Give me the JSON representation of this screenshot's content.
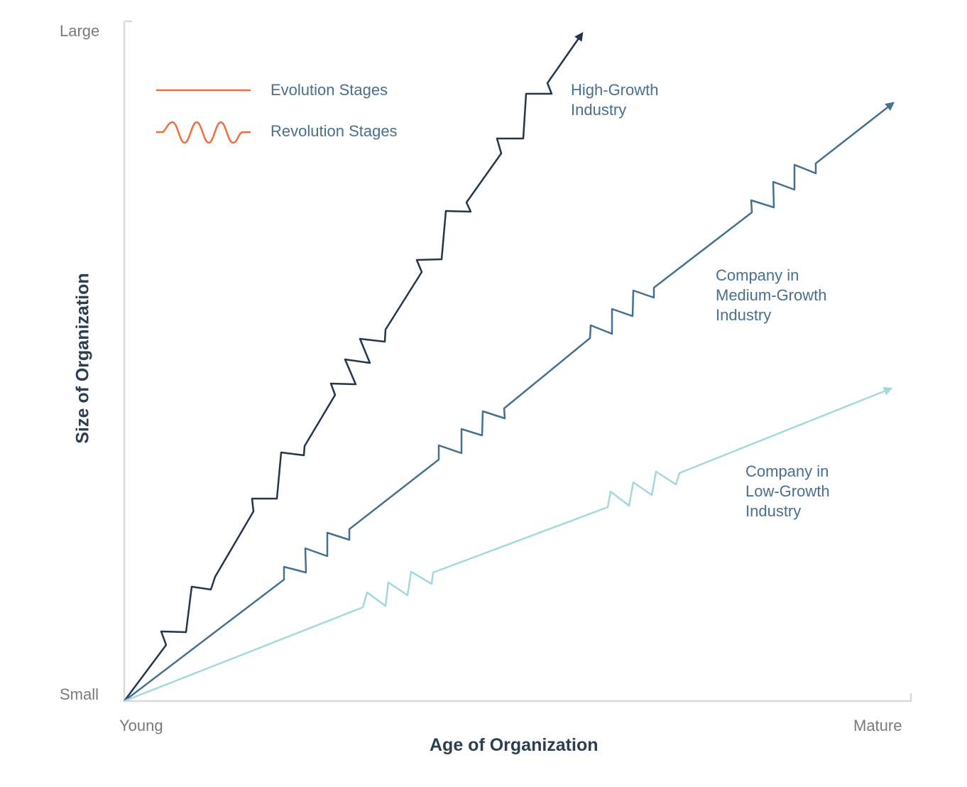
{
  "axes": {
    "x_title": "Age of Organization",
    "y_title": "Size of Organization",
    "x_start": "Young",
    "x_end": "Mature",
    "y_start": "Small",
    "y_end": "Large"
  },
  "legend": {
    "evolution": "Evolution Stages",
    "revolution": "Revolution Stages"
  },
  "curves": {
    "high": {
      "label": "High-Growth\nIndustry",
      "color": "#24364a"
    },
    "medium": {
      "label": "Company in\nMedium-Growth\nIndustry",
      "color": "#46708f"
    },
    "low": {
      "label": "Company in\nLow-Growth\nIndustry",
      "color": "#a3d9dc"
    }
  },
  "colors": {
    "axis": "#d9d9d9",
    "legend_line": "#f26b3a"
  }
}
